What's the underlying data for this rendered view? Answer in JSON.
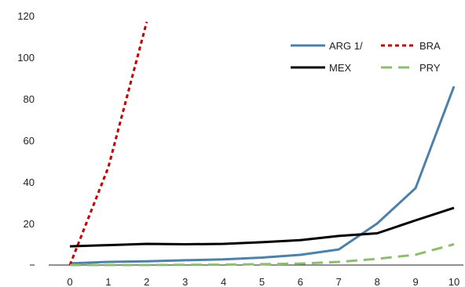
{
  "chart_data": {
    "type": "line",
    "title": "",
    "xlabel": "",
    "ylabel": "",
    "x": [
      0,
      1,
      2,
      3,
      4,
      5,
      6,
      7,
      8,
      9,
      10
    ],
    "xlim": [
      0,
      10
    ],
    "ylim": [
      0,
      120
    ],
    "yticks": [
      "",
      "20",
      "40",
      "60",
      "80",
      "100",
      "120"
    ],
    "xticks": [
      "0",
      "1",
      "2",
      "3",
      "4",
      "5",
      "6",
      "7",
      "8",
      "9",
      "10"
    ],
    "grid": false,
    "legend_position": "top-right",
    "series": [
      {
        "name": "ARG 1/",
        "color": "#4e81a8",
        "style": "solid",
        "values": [
          0.8,
          1.5,
          1.8,
          2.3,
          2.7,
          3.6,
          4.9,
          7.5,
          20,
          37,
          86
        ]
      },
      {
        "name": "BRA",
        "color": "#c00000",
        "style": "dotted",
        "values": [
          0,
          47,
          117,
          null,
          null,
          null,
          null,
          null,
          null,
          null,
          null
        ]
      },
      {
        "name": "MEX",
        "color": "#000000",
        "style": "solid",
        "values": [
          9,
          9.6,
          10.2,
          10,
          10.2,
          11,
          12,
          14,
          15.3,
          21.5,
          27.5
        ]
      },
      {
        "name": "PRY",
        "color": "#8fbd6f",
        "style": "dashed",
        "values": [
          0,
          0,
          0,
          0.1,
          0.2,
          0.4,
          0.7,
          1.5,
          3,
          5,
          10
        ]
      }
    ]
  }
}
